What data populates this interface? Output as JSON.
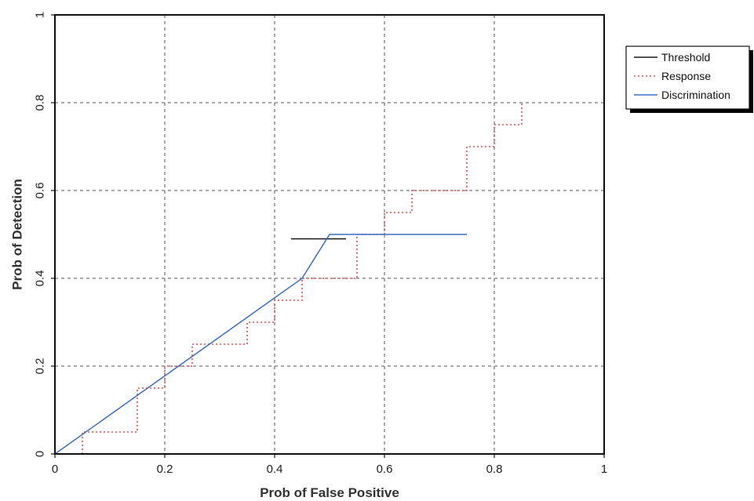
{
  "chart_data": {
    "type": "line",
    "title": "",
    "xlabel": "Prob of False Positive",
    "ylabel": "Prob of Detection",
    "xlim": [
      0,
      1
    ],
    "ylim": [
      0,
      1
    ],
    "x_ticks": [
      0,
      0.2,
      0.4,
      0.6,
      0.8,
      1
    ],
    "y_ticks": [
      0,
      0.2,
      0.4,
      0.6,
      0.8,
      1
    ],
    "x_tick_labels": [
      "0",
      "0.2",
      "0.4",
      "0.6",
      "0.8",
      "1"
    ],
    "y_tick_labels": [
      "0",
      "0.2",
      "0.4",
      "0.6",
      "0.8",
      "1"
    ],
    "grid": true,
    "legend_position": "right-top",
    "series": [
      {
        "name": "Threshold",
        "color": "#1a1a1a",
        "style": "solid",
        "points": [
          [
            0.43,
            0.49
          ],
          [
            0.53,
            0.49
          ]
        ]
      },
      {
        "name": "Response",
        "color": "#e05050",
        "style": "dotted",
        "points": [
          [
            0.05,
            0
          ],
          [
            0.05,
            0.05
          ],
          [
            0.15,
            0.05
          ],
          [
            0.15,
            0.15
          ],
          [
            0.2,
            0.15
          ],
          [
            0.2,
            0.2
          ],
          [
            0.25,
            0.2
          ],
          [
            0.25,
            0.25
          ],
          [
            0.35,
            0.25
          ],
          [
            0.35,
            0.3
          ],
          [
            0.4,
            0.3
          ],
          [
            0.4,
            0.35
          ],
          [
            0.45,
            0.35
          ],
          [
            0.45,
            0.4
          ],
          [
            0.55,
            0.4
          ],
          [
            0.55,
            0.5
          ],
          [
            0.6,
            0.5
          ],
          [
            0.6,
            0.55
          ],
          [
            0.65,
            0.55
          ],
          [
            0.65,
            0.6
          ],
          [
            0.75,
            0.6
          ],
          [
            0.75,
            0.7
          ],
          [
            0.8,
            0.7
          ],
          [
            0.8,
            0.75
          ],
          [
            0.85,
            0.75
          ],
          [
            0.85,
            0.8
          ]
        ]
      },
      {
        "name": "Discrimination",
        "color": "#3a6fc4",
        "style": "solid",
        "points": [
          [
            0,
            0
          ],
          [
            0.45,
            0.4
          ],
          [
            0.5,
            0.5
          ],
          [
            0.75,
            0.5
          ]
        ]
      }
    ]
  }
}
